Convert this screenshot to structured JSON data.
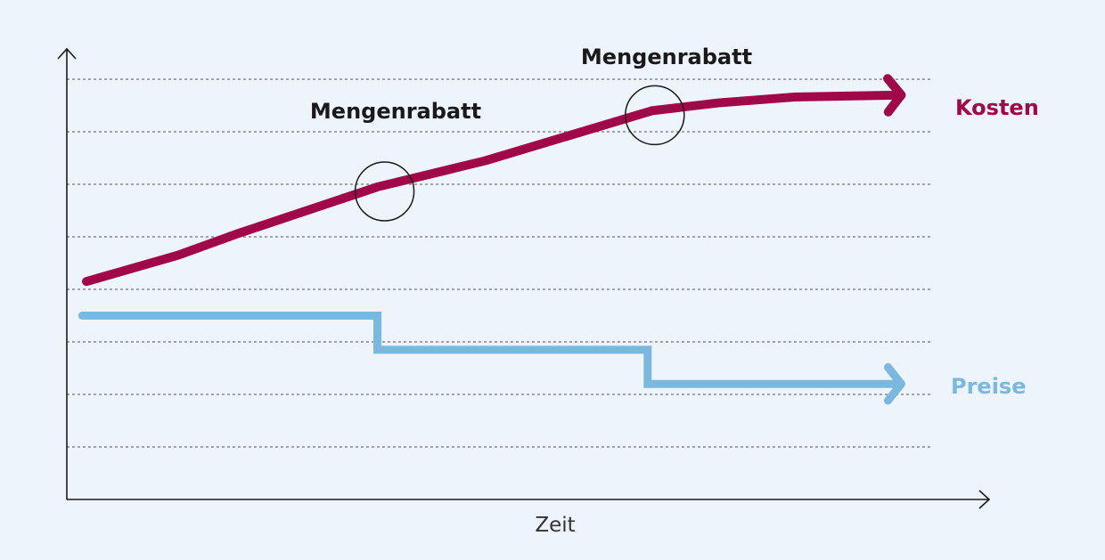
{
  "chart_data": {
    "type": "line",
    "title": "",
    "xlabel": "Zeit",
    "ylabel": "",
    "grid": true,
    "colors": {
      "background": "#EDF4FC",
      "axis": "#1A1A1A",
      "grid": "#555555",
      "annotation": "#1A1A1A"
    },
    "series": [
      {
        "name": "Kosten",
        "color": "#A0084A",
        "shape": "linear",
        "points": [
          [
            0,
            4.15
          ],
          [
            1.1,
            4.65
          ],
          [
            1.8,
            5.05
          ],
          [
            3.5,
            5.95
          ],
          [
            4.8,
            6.45
          ],
          [
            6.8,
            7.4
          ],
          [
            7.6,
            7.55
          ],
          [
            8.5,
            7.66
          ],
          [
            9.8,
            7.7
          ]
        ]
      },
      {
        "name": "Preise",
        "color": "#7AB8E0",
        "shape": "step",
        "points": [
          [
            -0.05,
            3.5
          ],
          [
            3.5,
            3.5
          ],
          [
            3.5,
            2.85
          ],
          [
            6.75,
            2.85
          ],
          [
            6.75,
            2.2
          ],
          [
            9.8,
            2.2
          ]
        ]
      }
    ],
    "annotations": [
      {
        "label": "Mengenrabatt",
        "x": 3.5,
        "y": 5.95
      },
      {
        "label": "Mengenrabatt",
        "x": 6.75,
        "y": 7.4
      }
    ],
    "xlim": [
      0,
      11.5
    ],
    "ylim": [
      0,
      8
    ]
  }
}
